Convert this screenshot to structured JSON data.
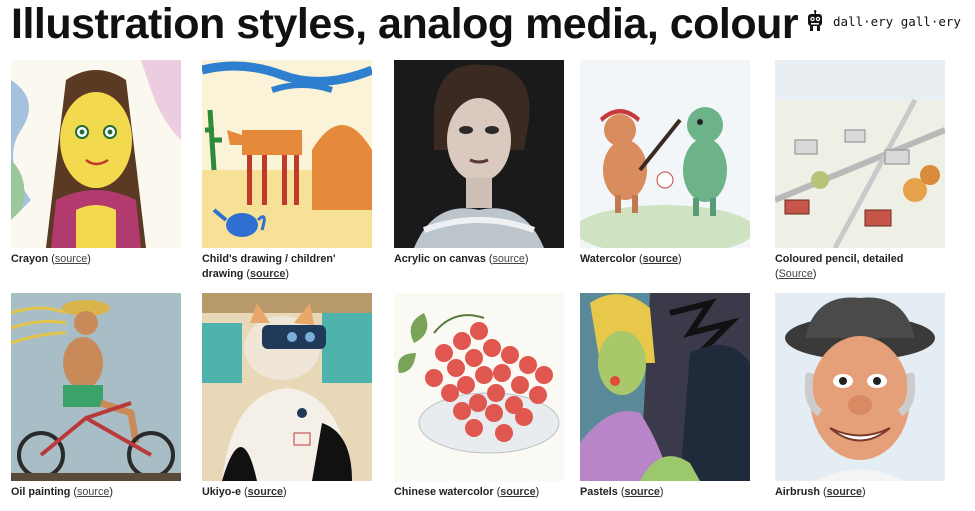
{
  "header": {
    "title": "Illustration styles, analog media, colour",
    "brand_text": "dall·ery gall·ery",
    "brand_icon": "dalle-robot-icon"
  },
  "cards": [
    {
      "label": "Crayon",
      "source": "source",
      "source_style": "plain",
      "paren": true
    },
    {
      "label": "Child's drawing / children' drawing",
      "source": "source",
      "source_style": "bold",
      "paren": true
    },
    {
      "label": "Acrylic on canvas",
      "source": "source",
      "source_style": "plain",
      "paren": true
    },
    {
      "label": "Watercolor",
      "source": "source",
      "source_style": "bold",
      "paren": true
    },
    {
      "label": "Coloured pencil, detailed",
      "source": "Source",
      "source_style": "plain",
      "paren": true
    },
    {
      "label": "Oil painting",
      "source": "source",
      "source_style": "plain",
      "paren": true
    },
    {
      "label": "Ukiyo-e",
      "source": "source",
      "source_style": "bold",
      "paren": true
    },
    {
      "label": "Chinese watercolor",
      "source": "source",
      "source_style": "bold",
      "paren": true
    },
    {
      "label": "Pastels",
      "source": "source",
      "source_style": "bold",
      "paren": true
    },
    {
      "label": "Airbrush",
      "source": "source",
      "source_style": "bold",
      "paren": true
    }
  ]
}
